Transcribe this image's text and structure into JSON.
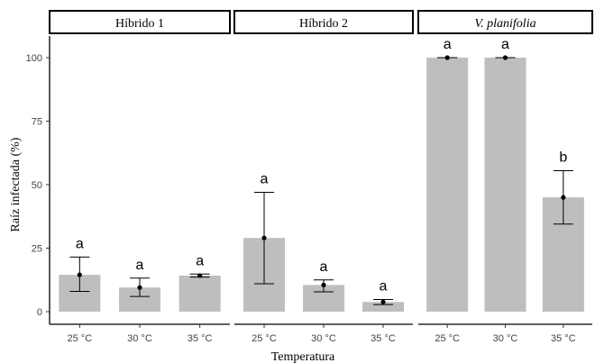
{
  "chart_data": {
    "type": "bar",
    "ylabel": "Raíz infectada (%)",
    "xlabel": "Temperatura",
    "ylim": [
      0,
      100
    ],
    "yticks": [
      0,
      25,
      50,
      75,
      100
    ],
    "bar_color": "#bebebe",
    "panels": [
      {
        "label": "Híbrido 1",
        "italic": false,
        "categories": [
          "25 °C",
          "30 °C",
          "35 °C"
        ],
        "values": [
          14.5,
          9.5,
          14.2
        ],
        "err_low": [
          8,
          6,
          13.6
        ],
        "err_high": [
          21.5,
          13.2,
          14.8
        ],
        "letters": [
          "a",
          "a",
          "a"
        ]
      },
      {
        "label": "Híbrido 2",
        "italic": false,
        "categories": [
          "25 °C",
          "30 °C",
          "35 °C"
        ],
        "values": [
          29,
          10.5,
          3.8
        ],
        "err_low": [
          11,
          7.8,
          2.8
        ],
        "err_high": [
          47,
          12.5,
          4.8
        ],
        "letters": [
          "a",
          "a",
          "a"
        ]
      },
      {
        "label": "V. planifolia",
        "italic": true,
        "categories": [
          "25 °C",
          "30 °C",
          "35 °C"
        ],
        "values": [
          100,
          100,
          45
        ],
        "err_low": [
          100,
          100,
          34.5
        ],
        "err_high": [
          100,
          100,
          55.5
        ],
        "letters": [
          "a",
          "a",
          "b"
        ]
      }
    ]
  }
}
